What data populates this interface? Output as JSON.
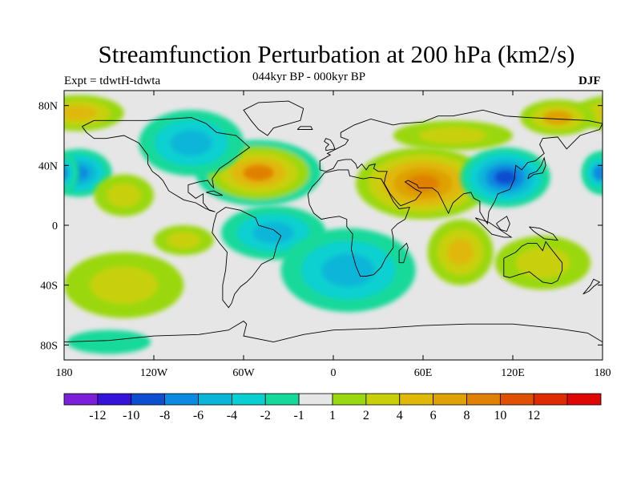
{
  "title": "Streamfunction Perturbation at 200 hPa (km2/s)",
  "left_label": "Expt = tdwtH-tdwta",
  "center_label": "044kyr BP - 000kyr BP",
  "right_label": "DJF",
  "lat_ticks": [
    {
      "label": "80N",
      "lat": 80
    },
    {
      "label": "40N",
      "lat": 40
    },
    {
      "label": "0",
      "lat": 0
    },
    {
      "label": "40S",
      "lat": -40
    },
    {
      "label": "80S",
      "lat": -80
    }
  ],
  "lon_ticks": [
    {
      "label": "180",
      "lon": -180
    },
    {
      "label": "120W",
      "lon": -120
    },
    {
      "label": "60W",
      "lon": -60
    },
    {
      "label": "0",
      "lon": 0
    },
    {
      "label": "60E",
      "lon": 60
    },
    {
      "label": "120E",
      "lon": 120
    },
    {
      "label": "180",
      "lon": 180
    }
  ],
  "colorbar": {
    "colors": [
      "#7b1fd8",
      "#3513d8",
      "#0b4ed0",
      "#0a8ae0",
      "#09b6d8",
      "#09d0d0",
      "#14d99a",
      "#e6e6e6",
      "#9ad80f",
      "#c8d00a",
      "#e0b808",
      "#dea106",
      "#e08004",
      "#df5003",
      "#e02a02",
      "#df0606"
    ],
    "labels": [
      "-12",
      "-10",
      "-8",
      "-6",
      "-4",
      "-2",
      "-1",
      "1",
      "2",
      "4",
      "6",
      "8",
      "10",
      "12"
    ]
  },
  "regions": [
    {
      "name": "north-atlantic-high",
      "lon": -50,
      "lat": 35,
      "rx": 42,
      "ry": 22,
      "levels": [
        "#14d99a",
        "#9ad80f",
        "#c8d00a",
        "#e0b808",
        "#e08004"
      ]
    },
    {
      "name": "asian-high",
      "lon": 60,
      "lat": 28,
      "rx": 45,
      "ry": 24,
      "levels": [
        "#9ad80f",
        "#c8d00a",
        "#e0b808",
        "#dea106",
        "#e08004"
      ]
    },
    {
      "name": "north-america-low",
      "lon": -95,
      "lat": 55,
      "rx": 35,
      "ry": 22,
      "levels": [
        "#14d99a",
        "#09d0d0",
        "#09b6d8"
      ]
    },
    {
      "name": "east-asia-low",
      "lon": 115,
      "lat": 32,
      "rx": 30,
      "ry": 20,
      "levels": [
        "#14d99a",
        "#09d0d0",
        "#09b6d8",
        "#0a8ae0",
        "#0b4ed0"
      ]
    },
    {
      "name": "north-pacific-low",
      "lon": -170,
      "lat": 35,
      "rx": 22,
      "ry": 16,
      "levels": [
        "#14d99a",
        "#09d0d0",
        "#09b6d8",
        "#0a8ae0"
      ]
    },
    {
      "name": "far-east-low",
      "lon": 178,
      "lat": 35,
      "rx": 12,
      "ry": 14,
      "levels": [
        "#14d99a",
        "#09d0d0",
        "#0a8ae0"
      ]
    },
    {
      "name": "arctic-high",
      "lon": -170,
      "lat": 75,
      "rx": 30,
      "ry": 12,
      "levels": [
        "#9ad80f",
        "#c8d00a",
        "#e0b808"
      ]
    },
    {
      "name": "northeast-high",
      "lon": 150,
      "lat": 72,
      "rx": 25,
      "ry": 12,
      "levels": [
        "#9ad80f",
        "#c8d00a",
        "#dea106"
      ]
    },
    {
      "name": "eurasian-band-high",
      "lon": 80,
      "lat": 60,
      "rx": 40,
      "ry": 10,
      "levels": [
        "#9ad80f",
        "#c8d00a"
      ]
    },
    {
      "name": "tropical-pacific-high",
      "lon": -140,
      "lat": 20,
      "rx": 20,
      "ry": 14,
      "levels": [
        "#9ad80f",
        "#c8d00a"
      ]
    },
    {
      "name": "tropical-atlantic-low",
      "lon": -40,
      "lat": -5,
      "rx": 35,
      "ry": 18,
      "levels": [
        "#14d99a",
        "#09d0d0",
        "#09b6d8"
      ]
    },
    {
      "name": "south-atlantic-low",
      "lon": 10,
      "lat": -30,
      "rx": 45,
      "ry": 28,
      "levels": [
        "#14d99a",
        "#09d0d0",
        "#09b6d8"
      ]
    },
    {
      "name": "south-indian-high",
      "lon": 85,
      "lat": -18,
      "rx": 22,
      "ry": 22,
      "levels": [
        "#9ad80f",
        "#c8d00a",
        "#e0b808"
      ]
    },
    {
      "name": "australia-high",
      "lon": 140,
      "lat": -25,
      "rx": 32,
      "ry": 18,
      "levels": [
        "#9ad80f",
        "#c8d00a"
      ]
    },
    {
      "name": "south-pacific-high",
      "lon": -140,
      "lat": -40,
      "rx": 40,
      "ry": 22,
      "levels": [
        "#9ad80f",
        "#c8d00a"
      ]
    },
    {
      "name": "southern-ocean-low",
      "lon": -150,
      "lat": -78,
      "rx": 28,
      "ry": 8,
      "levels": [
        "#14d99a"
      ]
    },
    {
      "name": "tropical-east-pacific-high",
      "lon": -100,
      "lat": -10,
      "rx": 20,
      "ry": 10,
      "levels": [
        "#9ad80f",
        "#c8d00a"
      ]
    }
  ]
}
